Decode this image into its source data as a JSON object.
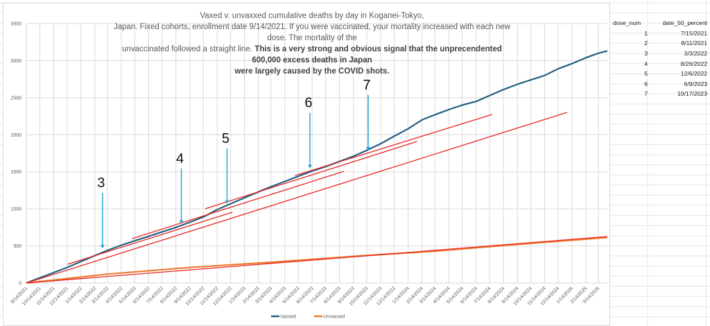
{
  "title": {
    "line1": "Vaxed v. unvaxxed cumulative deaths by day in Koganei-Tokyo,",
    "line2": "Japan. Fixed cohorts, enrollment date 9/14/2021.  If you were vaccinated, your mortality increased with each new dose. The mortality of the",
    "line3_normal": "unvaccinated followed a straight line. ",
    "line3_bold": "This is a very strong and obvious signal that the unprecendented 600,000 excess deaths in Japan",
    "line4_bold": "were largely caused by the COVID shots."
  },
  "table": {
    "headers": [
      "dose_num",
      "date_50_percent"
    ],
    "rows": [
      [
        "1",
        "7/15/2021"
      ],
      [
        "2",
        "8/11/2021"
      ],
      [
        "3",
        "3/3/2022"
      ],
      [
        "4",
        "8/26/2022"
      ],
      [
        "5",
        "12/6/2022"
      ],
      [
        "6",
        "6/9/2023"
      ],
      [
        "7",
        "10/17/2023"
      ]
    ]
  },
  "chart_data": {
    "type": "line",
    "xlim": [
      "9/14/2021",
      "4/3/2025"
    ],
    "ylim": [
      0,
      3500
    ],
    "yticks": [
      0,
      500,
      1000,
      1500,
      2000,
      2500,
      3000,
      3500
    ],
    "xticks": [
      "9/14/2021",
      "10/14/2021",
      "11/14/2021",
      "12/14/2021",
      "1/14/2022",
      "2/14/2022",
      "3/14/2022",
      "4/14/2022",
      "5/14/2022",
      "6/14/2022",
      "7/14/2022",
      "8/14/2022",
      "9/14/2022",
      "10/14/2022",
      "11/14/2022",
      "12/14/2022",
      "1/14/2023",
      "2/14/2023",
      "3/14/2023",
      "4/14/2023",
      "5/14/2023",
      "6/14/2023",
      "7/14/2023",
      "8/14/2023",
      "9/14/2023",
      "10/14/2023",
      "11/14/2023",
      "12/14/2023",
      "1/14/2024",
      "2/14/2024",
      "3/14/2024",
      "4/14/2024",
      "5/14/2024",
      "6/14/2024",
      "7/14/2024",
      "8/14/2024",
      "9/14/2024",
      "10/14/2024",
      "11/14/2024",
      "12/14/2024",
      "1/14/2025",
      "2/14/2025",
      "3/14/2025"
    ],
    "grid": true,
    "legend": "bottom",
    "series": [
      {
        "name": "Vaxxed",
        "color": "#1f5f7f",
        "x": [
          "9/14/2021",
          "10/14/2021",
          "11/14/2021",
          "12/14/2021",
          "1/14/2022",
          "2/14/2022",
          "3/14/2022",
          "4/14/2022",
          "5/14/2022",
          "6/14/2022",
          "7/14/2022",
          "8/14/2022",
          "9/14/2022",
          "10/14/2022",
          "11/14/2022",
          "12/14/2022",
          "1/14/2023",
          "2/14/2023",
          "3/14/2023",
          "4/14/2023",
          "5/14/2023",
          "6/14/2023",
          "7/14/2023",
          "8/14/2023",
          "9/14/2023",
          "10/14/2023",
          "11/14/2023",
          "12/14/2023",
          "1/14/2024",
          "2/14/2024",
          "3/14/2024",
          "4/14/2024",
          "5/14/2024",
          "6/14/2024",
          "7/14/2024",
          "8/14/2024",
          "9/14/2024",
          "10/14/2024",
          "11/14/2024",
          "12/14/2024",
          "1/14/2025",
          "2/14/2025",
          "3/14/2025",
          "4/3/2025"
        ],
        "y": [
          0,
          70,
          140,
          210,
          290,
          370,
          440,
          510,
          570,
          630,
          690,
          750,
          820,
          890,
          990,
          1070,
          1150,
          1230,
          1300,
          1370,
          1440,
          1510,
          1570,
          1640,
          1710,
          1790,
          1880,
          1980,
          2080,
          2200,
          2270,
          2340,
          2400,
          2450,
          2530,
          2610,
          2680,
          2740,
          2800,
          2890,
          2960,
          3040,
          3100,
          3130
        ]
      },
      {
        "name": "Unvaxxed",
        "color": "#ed7d31",
        "x": [
          "9/14/2021",
          "12/14/2021",
          "3/14/2022",
          "9/14/2022",
          "3/14/2023",
          "9/14/2023",
          "3/14/2024",
          "9/14/2024",
          "3/14/2025",
          "4/3/2025"
        ],
        "y": [
          0,
          60,
          120,
          210,
          280,
          360,
          430,
          520,
          605,
          615
        ]
      }
    ],
    "trend_lines": {
      "color": "#e8231f",
      "segments": [
        {
          "x": [
            "9/14/2021",
            "1/3/2025"
          ],
          "y": [
            0,
            2302
          ]
        },
        {
          "x": [
            "12/15/2021",
            "12/18/2022"
          ],
          "y": [
            253,
            955
          ]
        },
        {
          "x": [
            "5/8/2022",
            "8/24/2023"
          ],
          "y": [
            599,
            1507
          ]
        },
        {
          "x": [
            "10/18/2022",
            "2/3/2024"
          ],
          "y": [
            1001,
            1909
          ]
        },
        {
          "x": [
            "5/7/2023",
            "7/20/2024"
          ],
          "y": [
            1450,
            2274
          ]
        },
        {
          "x": [
            "9/14/2021",
            "4/3/2025"
          ],
          "y": [
            0,
            627
          ]
        }
      ]
    },
    "annotations": {
      "arrow_color": "#29a3d6",
      "items": [
        {
          "label": "3",
          "x": "3/3/2022",
          "y": 430
        },
        {
          "label": "4",
          "x": "8/26/2022",
          "y": 760
        },
        {
          "label": "5",
          "x": "12/6/2022",
          "y": 1030
        },
        {
          "label": "6",
          "x": "6/9/2023",
          "y": 1510
        },
        {
          "label": "7",
          "x": "10/17/2023",
          "y": 1750
        }
      ]
    }
  }
}
